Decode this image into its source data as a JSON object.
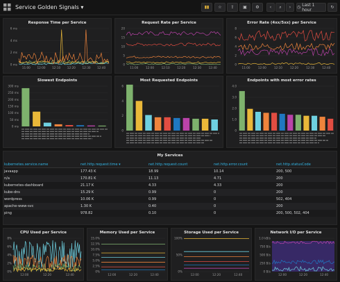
{
  "header": {
    "title": "Service Golden Signals",
    "time_range": "Last 1 hour",
    "icons": [
      "apps-icon",
      "add-panel-icon",
      "star-icon",
      "share-icon",
      "save-icon",
      "settings-icon",
      "back-icon",
      "zoom-out-icon",
      "forward-icon",
      "clock-icon",
      "refresh-icon"
    ]
  },
  "colors": {
    "green": "#7eb26d",
    "yellow": "#eab839",
    "cyan": "#6ed0e0",
    "orange": "#ef843c",
    "red": "#e24d42",
    "blue": "#1f78c1",
    "purple": "#ba43a9",
    "link": "#33b5e5"
  },
  "panels": {
    "response_time": {
      "title": "Response Time per Service",
      "y_ticks": [
        "6 ms",
        "4 ms",
        "2 ms",
        "0 ms"
      ],
      "x_ticks": [
        "11:00",
        "12:00",
        "12:10",
        "12:20",
        "12:30",
        "12:40"
      ]
    },
    "request_rate": {
      "title": "Request Rate per Service",
      "y_ticks": [
        "20",
        "15",
        "10",
        "5",
        "0"
      ],
      "x_ticks": [
        "11:00",
        "12:00",
        "12:10",
        "12:20",
        "12:30",
        "12:40"
      ]
    },
    "error_rate": {
      "title": "Error Rate (4xx/5xx) per Service",
      "y_ticks": [
        "8",
        "6",
        "4",
        "2",
        "0"
      ],
      "x_ticks": [
        "11:00",
        "12:00",
        "12:10",
        "12:20",
        "12:30",
        "12:40"
      ]
    },
    "slowest": {
      "title": "Slowest Endpoints",
      "y_ticks": [
        "300 ms",
        "250 ms",
        "200 ms",
        "150 ms",
        "100 ms",
        "50 ms",
        "0 ms"
      ]
    },
    "most_requested": {
      "title": "Most Requested Endpoints",
      "y_ticks": [
        "6",
        "4",
        "2",
        "0"
      ]
    },
    "most_errors": {
      "title": "Endpoints with most error rates",
      "y_ticks": [
        "4.0",
        "3.0",
        "2.0",
        "1.0",
        "0"
      ]
    },
    "cpu": {
      "title": "CPU Used per Service",
      "y_ticks": [
        "8%",
        "6%",
        "4%",
        "2%",
        "0%"
      ],
      "x_ticks": [
        "12:00",
        "12:20",
        "12:40"
      ]
    },
    "memory": {
      "title": "Memory Used per Service",
      "y_ticks": [
        "15.0%",
        "12.5%",
        "10.0%",
        "7.5%",
        "5.0%",
        "2.5%",
        "0%"
      ],
      "x_ticks": [
        "12:00",
        "12:20",
        "12:40"
      ]
    },
    "storage": {
      "title": "Storage Used per Service",
      "y_ticks": [
        "100%",
        "50%",
        "0%"
      ],
      "x_ticks": [
        "12:00",
        "12:20",
        "12:40"
      ]
    },
    "network": {
      "title": "Network I/O per Service",
      "y_ticks": [
        "1.0 kB/s",
        "750 B/s",
        "500 B/s",
        "250 B/s",
        "0 B/s"
      ],
      "x_ticks": [
        "12:00",
        "12:20",
        "12:40"
      ]
    }
  },
  "table": {
    "title": "My Services",
    "columns": [
      "kubernetes.service.name",
      "net.http.request.time ▾",
      "net.http.request.count",
      "net.http.error.count",
      "net.http.statusCode"
    ],
    "rows": [
      [
        "javaapp",
        "177.43 K",
        "18.99",
        "10.14",
        "200, 500"
      ],
      [
        "n/a",
        "170.81 K",
        "11.13",
        "4.71",
        "200"
      ],
      [
        "kubernetes-dashboard",
        "21.17 K",
        "4.33",
        "4.33",
        "200"
      ],
      [
        "kube-dns",
        "15.29 K",
        "0.99",
        "0",
        "200"
      ],
      [
        "wordpress",
        "10.06 K",
        "0.99",
        "0",
        "502, 404"
      ],
      [
        "apache-www-svc",
        "1.30 K",
        "0.40",
        "0",
        "200"
      ],
      [
        "ping",
        "978.82",
        "0.10",
        "0",
        "200, 500, 502, 404"
      ]
    ]
  },
  "chart_data": [
    {
      "type": "bar",
      "title": "Slowest Endpoints",
      "ylabel": "",
      "ylim": [
        0,
        300
      ],
      "values": [
        285,
        110,
        28,
        16,
        10,
        9,
        7,
        6
      ]
    },
    {
      "type": "bar",
      "title": "Most Requested Endpoints",
      "ylim": [
        0,
        6
      ],
      "values": [
        6.2,
        4.0,
        2.1,
        1.8,
        1.8,
        1.7,
        1.7,
        1.6,
        1.6,
        1.5
      ]
    },
    {
      "type": "bar",
      "title": "Endpoints with most error rates",
      "ylim": [
        0,
        4.5
      ],
      "values": [
        4.0,
        2.2,
        1.9,
        1.8,
        1.8,
        1.7,
        1.6,
        1.6,
        1.5,
        1.5,
        1.4,
        1.2
      ]
    }
  ]
}
